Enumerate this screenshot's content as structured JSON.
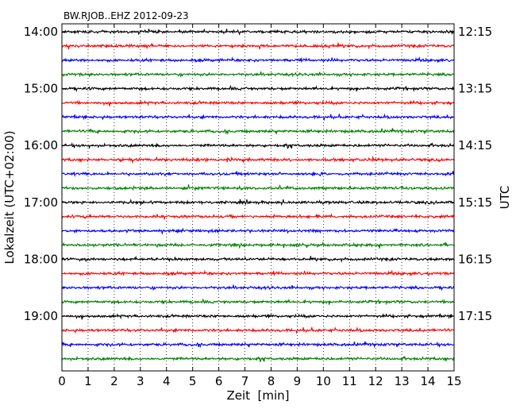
{
  "chart_data": {
    "type": "line",
    "title": "BW.RJOB..EHZ 2012-09-23",
    "xlabel": "Zeit  [min]",
    "ylabel_left": "Lokalzeit (UTC+02:00)",
    "ylabel_right": "UTC",
    "xlim": [
      0,
      15
    ],
    "x_ticks": [
      "0",
      "1",
      "2",
      "3",
      "4",
      "5",
      "6",
      "7",
      "8",
      "9",
      "10",
      "11",
      "12",
      "13",
      "14",
      "15"
    ],
    "x_grid": "dotted vertical lines at each minute",
    "left_ticks": [
      "14:00",
      "15:00",
      "16:00",
      "17:00",
      "18:00",
      "19:00"
    ],
    "right_ticks": [
      "12:15",
      "13:15",
      "14:15",
      "15:15",
      "16:15",
      "17:15"
    ],
    "trace_minutes": 15,
    "trace_count": 24,
    "trace_colors": [
      "#000000",
      "#ff0000",
      "#0000ff",
      "#008000"
    ],
    "first_trace_start_local": "14:00",
    "last_trace_start_local": "19:45"
  }
}
